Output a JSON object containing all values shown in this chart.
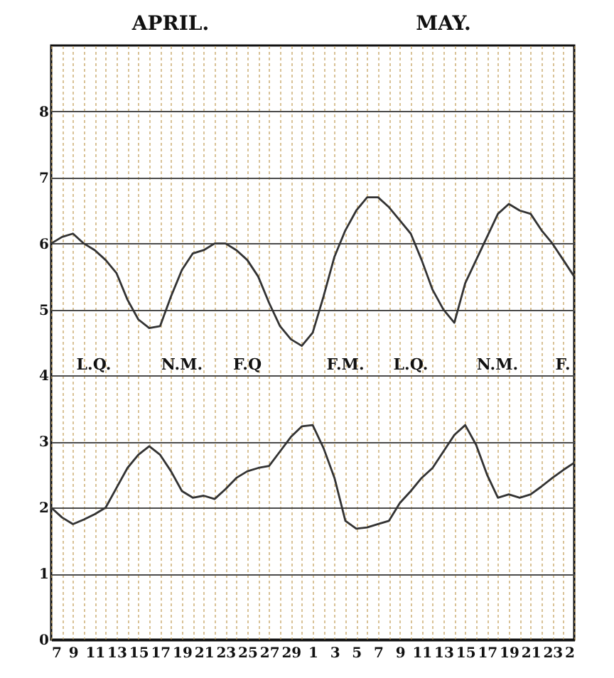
{
  "chart_data": {
    "type": "line",
    "x": [
      "--04-07",
      "--04-08",
      "--04-09",
      "--04-10",
      "--04-11",
      "--04-12",
      "--04-13",
      "--04-14",
      "--04-15",
      "--04-16",
      "--04-17",
      "--04-18",
      "--04-19",
      "--04-20",
      "--04-21",
      "--04-22",
      "--04-23",
      "--04-24",
      "--04-25",
      "--04-26",
      "--04-27",
      "--04-28",
      "--04-29",
      "--04-30",
      "--05-01",
      "--05-02",
      "--05-03",
      "--05-04",
      "--05-05",
      "--05-06",
      "--05-07",
      "--05-08",
      "--05-09",
      "--05-10",
      "--05-11",
      "--05-12",
      "--05-13",
      "--05-14",
      "--05-15",
      "--05-16",
      "--05-17",
      "--05-18",
      "--05-19",
      "--05-20",
      "--05-21",
      "--05-22",
      "--05-23",
      "--05-24",
      "--05-25"
    ],
    "series": [
      {
        "color": "#333333",
        "values": [
          6.0,
          6.1,
          6.15,
          6.0,
          5.9,
          5.75,
          5.55,
          5.15,
          4.85,
          4.72,
          4.75,
          5.2,
          5.6,
          5.85,
          5.9,
          6.0,
          6.0,
          5.9,
          5.75,
          5.5,
          5.1,
          4.75,
          4.55,
          4.45,
          4.65,
          5.2,
          5.8,
          6.2,
          6.5,
          6.7,
          6.7,
          6.55,
          6.35,
          6.15,
          5.75,
          5.3,
          5.0,
          4.8,
          5.4,
          5.75,
          6.1,
          6.45,
          6.6,
          6.5,
          6.45,
          6.2,
          6.0,
          5.75,
          5.5
        ]
      },
      {
        "color": "#333333",
        "values": [
          2.0,
          1.85,
          1.75,
          1.82,
          1.9,
          2.0,
          2.3,
          2.6,
          2.8,
          2.93,
          2.8,
          2.55,
          2.25,
          2.15,
          2.18,
          2.13,
          2.28,
          2.45,
          2.55,
          2.6,
          2.63,
          2.85,
          3.07,
          3.23,
          3.25,
          2.9,
          2.45,
          1.8,
          1.68,
          1.7,
          1.75,
          1.8,
          2.07,
          2.25,
          2.45,
          2.6,
          2.85,
          3.1,
          3.25,
          2.95,
          2.5,
          2.15,
          2.2,
          2.15,
          2.2,
          2.32,
          2.45,
          2.57,
          2.68
        ]
      }
    ],
    "xlim": [
      "--04-07",
      "--05-25"
    ],
    "xticks": [
      {
        "value": "--04-07",
        "label": "7"
      },
      {
        "value": "--04-08",
        "label": null
      },
      {
        "value": "--04-09",
        "label": "9"
      },
      {
        "value": "--04-10",
        "label": null
      },
      {
        "value": "--04-11",
        "label": "11"
      },
      {
        "value": "--04-12",
        "label": null
      },
      {
        "value": "--04-13",
        "label": "13"
      },
      {
        "value": "--04-14",
        "label": null
      },
      {
        "value": "--04-15",
        "label": "15"
      },
      {
        "value": "--04-16",
        "label": null
      },
      {
        "value": "--04-17",
        "label": "17"
      },
      {
        "value": "--04-18",
        "label": null
      },
      {
        "value": "--04-19",
        "label": "19"
      },
      {
        "value": "--04-20",
        "label": null
      },
      {
        "value": "--04-21",
        "label": "21"
      },
      {
        "value": "--04-22",
        "label": null
      },
      {
        "value": "--04-23",
        "label": "23"
      },
      {
        "value": "--04-24",
        "label": null
      },
      {
        "value": "--04-25",
        "label": "25"
      },
      {
        "value": "--04-26",
        "label": null
      },
      {
        "value": "--04-27",
        "label": "27"
      },
      {
        "value": "--04-28",
        "label": null
      },
      {
        "value": "--04-29",
        "label": "29"
      },
      {
        "value": "--04-30",
        "label": null
      },
      {
        "value": "--05-01",
        "label": "1"
      },
      {
        "value": "--05-02",
        "label": null
      },
      {
        "value": "--05-03",
        "label": "3"
      },
      {
        "value": "--05-04",
        "label": null
      },
      {
        "value": "--05-05",
        "label": "5"
      },
      {
        "value": "--05-06",
        "label": null
      },
      {
        "value": "--05-07",
        "label": "7"
      },
      {
        "value": "--05-08",
        "label": null
      },
      {
        "value": "--05-09",
        "label": "9"
      },
      {
        "value": "--05-10",
        "label": null
      },
      {
        "value": "--05-11",
        "label": "11"
      },
      {
        "value": "--05-12",
        "label": null
      },
      {
        "value": "--05-13",
        "label": "13"
      },
      {
        "value": "--05-14",
        "label": null
      },
      {
        "value": "--05-15",
        "label": "15"
      },
      {
        "value": "--05-16",
        "label": null
      },
      {
        "value": "--05-17",
        "label": "17"
      },
      {
        "value": "--05-18",
        "label": null
      },
      {
        "value": "--05-19",
        "label": "19"
      },
      {
        "value": "--05-20",
        "label": null
      },
      {
        "value": "--05-21",
        "label": "21"
      },
      {
        "value": "--05-22",
        "label": null
      },
      {
        "value": "--05-23",
        "label": "23"
      },
      {
        "value": "--05-24",
        "label": null
      },
      {
        "value": "--05-25",
        "label": "2"
      }
    ],
    "ylim": [
      0,
      9
    ],
    "yticks": [
      0,
      1,
      2,
      3,
      4,
      5,
      6,
      7,
      8
    ],
    "grid": true,
    "annotations": [
      "APRIL.",
      "MAY.",
      "L.Q.",
      "N.M.",
      "F.Q",
      "F.M.",
      "L.Q.",
      "N.M.",
      "F."
    ]
  }
}
